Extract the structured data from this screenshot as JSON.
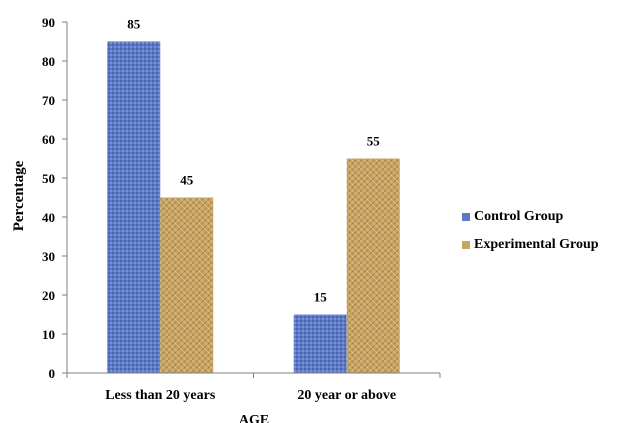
{
  "chart_data": {
    "type": "bar",
    "categories": [
      "Less than 20 years",
      "20 year or above"
    ],
    "series": [
      {
        "name": "Control Group",
        "values": [
          85,
          15
        ],
        "color": "#5b79c4"
      },
      {
        "name": "Experimental Group",
        "values": [
          45,
          55
        ],
        "color": "#c9a564"
      }
    ],
    "xlabel": "AGE",
    "ylabel": "Percentage",
    "ylim": [
      0,
      90
    ],
    "yticks": [
      0,
      10,
      20,
      30,
      40,
      50,
      60,
      70,
      80,
      90
    ],
    "grid": false,
    "legend_position": "right"
  }
}
